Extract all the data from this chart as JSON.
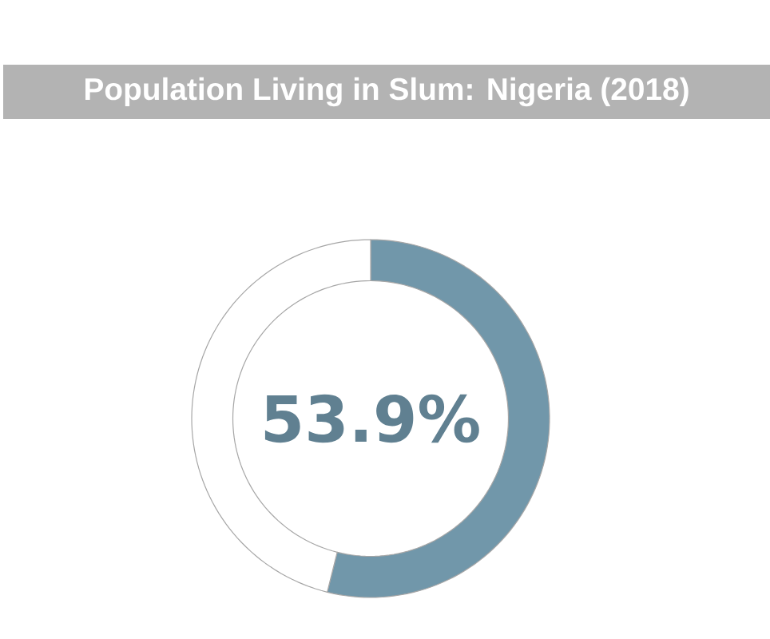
{
  "chart_data": {
    "type": "donut",
    "title": "Population Living in Slum: Nigeria (2018)",
    "categories": [
      null,
      null
    ],
    "values": [
      53.9,
      46.1
    ],
    "colors": [
      "#7197aa",
      "#ffffff"
    ],
    "value_labels": [
      "53.9%",
      null
    ]
  }
}
